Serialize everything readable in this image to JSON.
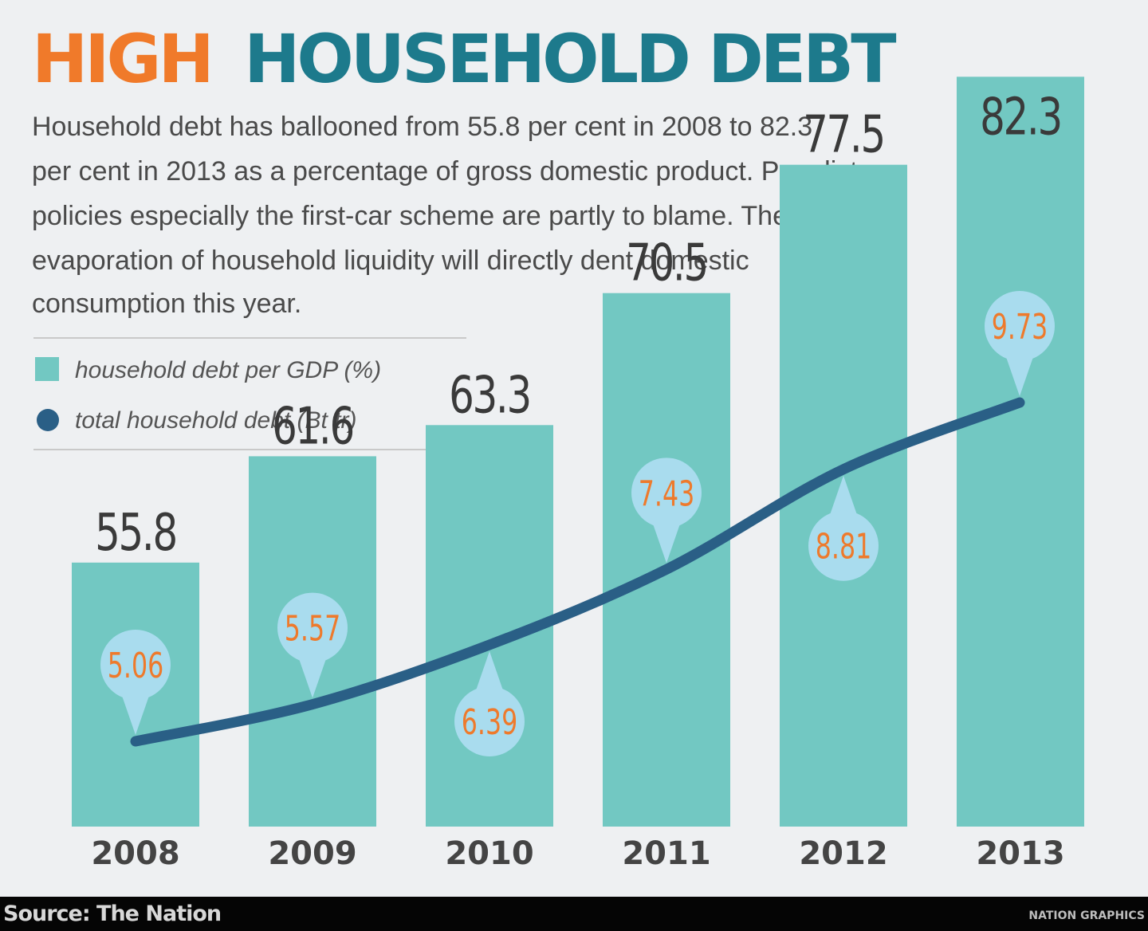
{
  "header": {
    "title_accent": "HIGH",
    "title_main": "HOUSEHOLD DEBT",
    "description_lines": [
      "Household debt has ballooned from 55.8 per cent in 2008 to 82.3",
      "per cent in 2013 as a percentage of gross domestic product. Populist",
      "policies especially the first-car scheme are partly to blame. The",
      "evaporation of household liquidity will directly dent domestic",
      "consumption this year."
    ]
  },
  "colors": {
    "accent_orange": "#f07a2a",
    "title_teal": "#1d7a8c",
    "bar_teal": "#72c8c2",
    "line_blue": "#2a5f86",
    "bubble_blue": "#a9dcee",
    "value_orange": "#ee7a2c",
    "text_dark": "#3a3a3a"
  },
  "chart_data": {
    "type": "bar",
    "categories": [
      "2008",
      "2009",
      "2010",
      "2011",
      "2012",
      "2013"
    ],
    "series": [
      {
        "name": "household debt per GDP (%)",
        "type": "bar",
        "values": [
          55.8,
          61.6,
          63.3,
          70.5,
          77.5,
          82.3
        ],
        "labels": [
          "55.8",
          "61.6",
          "63.3",
          "70.5",
          "77.5",
          "82.3"
        ]
      },
      {
        "name": "total household debt (Bt tr)",
        "type": "line",
        "values": [
          5.06,
          5.57,
          6.39,
          7.43,
          8.81,
          9.73
        ],
        "labels": [
          "5.06",
          "5.57",
          "6.39",
          "7.43",
          "8.81",
          "9.73"
        ]
      }
    ],
    "legend": {
      "placement": "top-left",
      "entries": [
        "household debt per GDP (%)",
        "total household debt (Bt tr)"
      ]
    },
    "grid": false
  },
  "footer": {
    "source": "Source: The Nation",
    "credit": "NATION GRAPHICS"
  }
}
